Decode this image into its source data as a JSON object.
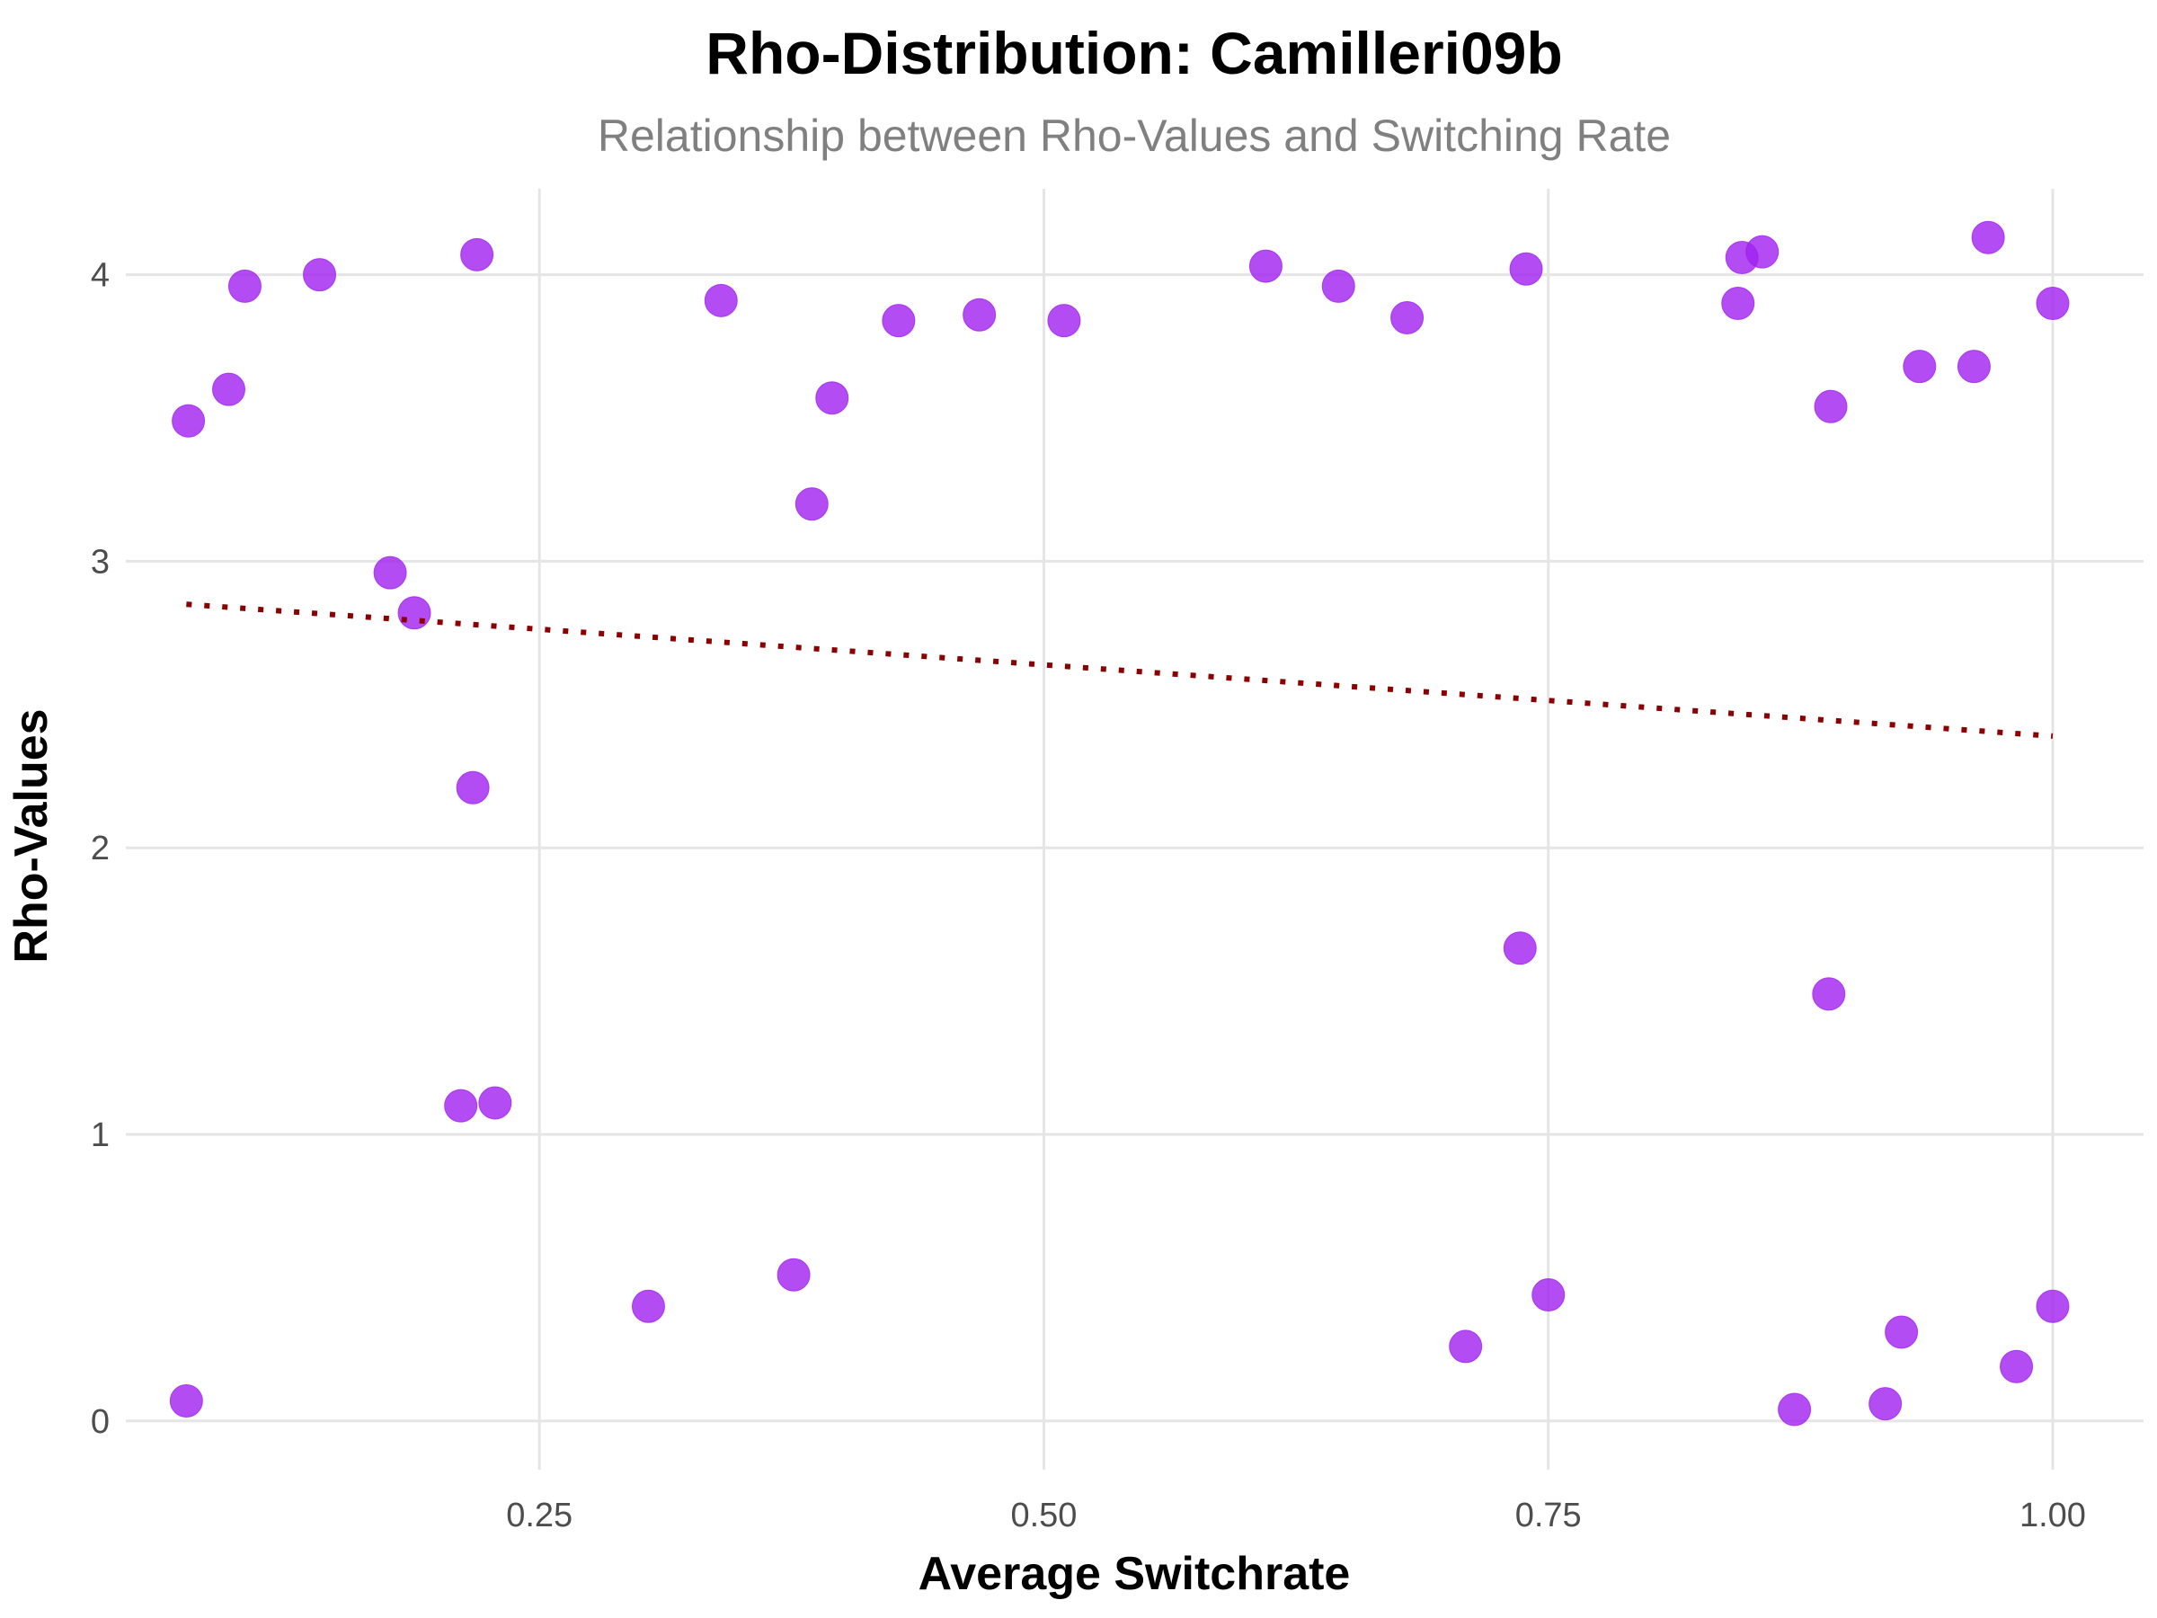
{
  "chart_data": {
    "type": "scatter",
    "title": "Rho-Distribution: Camilleri09b",
    "subtitle": "Relationship between Rho-Values and Switching Rate",
    "xlabel": "Average Switchrate",
    "ylabel": "Rho-Values",
    "xlim": [
      0.045,
      1.045
    ],
    "ylim": [
      -0.17,
      4.3
    ],
    "x_ticks": [
      0.25,
      0.5,
      0.75,
      1.0
    ],
    "x_tick_labels": [
      "0.25",
      "0.50",
      "0.75",
      "1.00"
    ],
    "y_ticks": [
      0,
      1,
      2,
      3,
      4
    ],
    "y_tick_labels": [
      "0",
      "1",
      "2",
      "3",
      "4"
    ],
    "grid": true,
    "point_color": "#a020f0",
    "trend_color": "#8b0000",
    "points": [
      {
        "x": 0.076,
        "y": 3.49
      },
      {
        "x": 0.096,
        "y": 3.6
      },
      {
        "x": 0.104,
        "y": 3.96
      },
      {
        "x": 0.141,
        "y": 4.0
      },
      {
        "x": 0.176,
        "y": 2.96
      },
      {
        "x": 0.188,
        "y": 2.82
      },
      {
        "x": 0.217,
        "y": 2.21
      },
      {
        "x": 0.219,
        "y": 4.07
      },
      {
        "x": 0.211,
        "y": 1.1
      },
      {
        "x": 0.228,
        "y": 1.11
      },
      {
        "x": 0.075,
        "y": 0.07
      },
      {
        "x": 0.304,
        "y": 0.4
      },
      {
        "x": 0.34,
        "y": 3.91
      },
      {
        "x": 0.376,
        "y": 0.51
      },
      {
        "x": 0.385,
        "y": 3.2
      },
      {
        "x": 0.395,
        "y": 3.57
      },
      {
        "x": 0.428,
        "y": 3.84
      },
      {
        "x": 0.468,
        "y": 3.86
      },
      {
        "x": 0.51,
        "y": 3.84
      },
      {
        "x": 0.61,
        "y": 4.03
      },
      {
        "x": 0.646,
        "y": 3.96
      },
      {
        "x": 0.68,
        "y": 3.85
      },
      {
        "x": 0.709,
        "y": 0.26
      },
      {
        "x": 0.736,
        "y": 1.65
      },
      {
        "x": 0.739,
        "y": 4.02
      },
      {
        "x": 0.75,
        "y": 0.44
      },
      {
        "x": 0.844,
        "y": 3.9
      },
      {
        "x": 0.846,
        "y": 4.06
      },
      {
        "x": 0.856,
        "y": 4.08
      },
      {
        "x": 0.872,
        "y": 0.04
      },
      {
        "x": 0.889,
        "y": 1.49
      },
      {
        "x": 0.89,
        "y": 3.54
      },
      {
        "x": 0.917,
        "y": 0.06
      },
      {
        "x": 0.925,
        "y": 0.31
      },
      {
        "x": 0.934,
        "y": 3.68
      },
      {
        "x": 0.961,
        "y": 3.68
      },
      {
        "x": 0.968,
        "y": 4.13
      },
      {
        "x": 0.982,
        "y": 0.19
      },
      {
        "x": 1.0,
        "y": 0.4
      },
      {
        "x": 1.0,
        "y": 3.9
      }
    ],
    "trend_line": {
      "x": [
        0.075,
        1.0
      ],
      "y": [
        2.85,
        2.39
      ]
    }
  }
}
